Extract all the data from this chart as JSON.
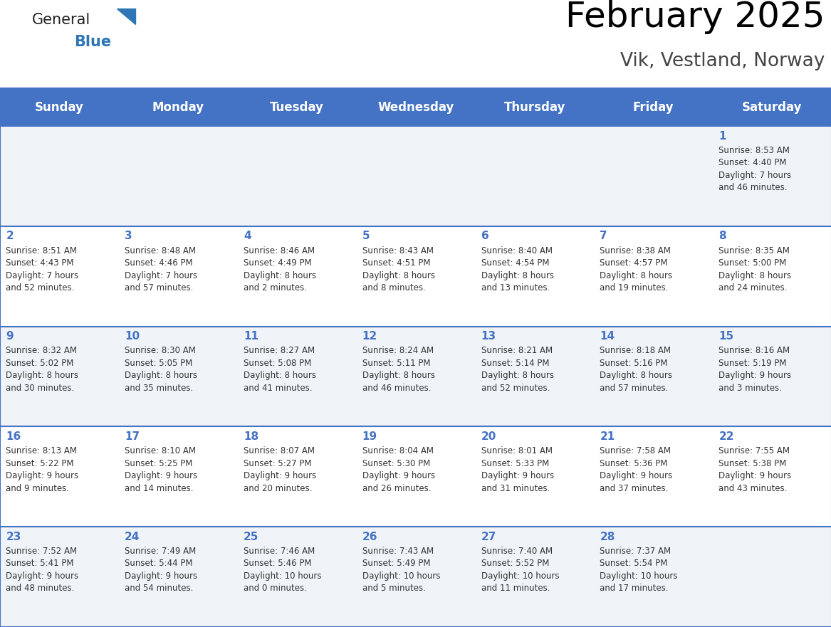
{
  "title": "February 2025",
  "subtitle": "Vik, Vestland, Norway",
  "header_bg": "#4472C4",
  "header_text_color": "#FFFFFF",
  "days_of_week": [
    "Sunday",
    "Monday",
    "Tuesday",
    "Wednesday",
    "Thursday",
    "Friday",
    "Saturday"
  ],
  "cell_bg_even": "#FFFFFF",
  "cell_bg_odd": "#F0F4F8",
  "border_color": "#4472C4",
  "text_color": "#333333",
  "logo_general_color": "#222222",
  "logo_blue_color": "#2E75B6",
  "logo_triangle_color": "#2E75B6",
  "calendar_data": [
    [
      {
        "day": null,
        "info": null
      },
      {
        "day": null,
        "info": null
      },
      {
        "day": null,
        "info": null
      },
      {
        "day": null,
        "info": null
      },
      {
        "day": null,
        "info": null
      },
      {
        "day": null,
        "info": null
      },
      {
        "day": 1,
        "info": "Sunrise: 8:53 AM\nSunset: 4:40 PM\nDaylight: 7 hours\nand 46 minutes."
      }
    ],
    [
      {
        "day": 2,
        "info": "Sunrise: 8:51 AM\nSunset: 4:43 PM\nDaylight: 7 hours\nand 52 minutes."
      },
      {
        "day": 3,
        "info": "Sunrise: 8:48 AM\nSunset: 4:46 PM\nDaylight: 7 hours\nand 57 minutes."
      },
      {
        "day": 4,
        "info": "Sunrise: 8:46 AM\nSunset: 4:49 PM\nDaylight: 8 hours\nand 2 minutes."
      },
      {
        "day": 5,
        "info": "Sunrise: 8:43 AM\nSunset: 4:51 PM\nDaylight: 8 hours\nand 8 minutes."
      },
      {
        "day": 6,
        "info": "Sunrise: 8:40 AM\nSunset: 4:54 PM\nDaylight: 8 hours\nand 13 minutes."
      },
      {
        "day": 7,
        "info": "Sunrise: 8:38 AM\nSunset: 4:57 PM\nDaylight: 8 hours\nand 19 minutes."
      },
      {
        "day": 8,
        "info": "Sunrise: 8:35 AM\nSunset: 5:00 PM\nDaylight: 8 hours\nand 24 minutes."
      }
    ],
    [
      {
        "day": 9,
        "info": "Sunrise: 8:32 AM\nSunset: 5:02 PM\nDaylight: 8 hours\nand 30 minutes."
      },
      {
        "day": 10,
        "info": "Sunrise: 8:30 AM\nSunset: 5:05 PM\nDaylight: 8 hours\nand 35 minutes."
      },
      {
        "day": 11,
        "info": "Sunrise: 8:27 AM\nSunset: 5:08 PM\nDaylight: 8 hours\nand 41 minutes."
      },
      {
        "day": 12,
        "info": "Sunrise: 8:24 AM\nSunset: 5:11 PM\nDaylight: 8 hours\nand 46 minutes."
      },
      {
        "day": 13,
        "info": "Sunrise: 8:21 AM\nSunset: 5:14 PM\nDaylight: 8 hours\nand 52 minutes."
      },
      {
        "day": 14,
        "info": "Sunrise: 8:18 AM\nSunset: 5:16 PM\nDaylight: 8 hours\nand 57 minutes."
      },
      {
        "day": 15,
        "info": "Sunrise: 8:16 AM\nSunset: 5:19 PM\nDaylight: 9 hours\nand 3 minutes."
      }
    ],
    [
      {
        "day": 16,
        "info": "Sunrise: 8:13 AM\nSunset: 5:22 PM\nDaylight: 9 hours\nand 9 minutes."
      },
      {
        "day": 17,
        "info": "Sunrise: 8:10 AM\nSunset: 5:25 PM\nDaylight: 9 hours\nand 14 minutes."
      },
      {
        "day": 18,
        "info": "Sunrise: 8:07 AM\nSunset: 5:27 PM\nDaylight: 9 hours\nand 20 minutes."
      },
      {
        "day": 19,
        "info": "Sunrise: 8:04 AM\nSunset: 5:30 PM\nDaylight: 9 hours\nand 26 minutes."
      },
      {
        "day": 20,
        "info": "Sunrise: 8:01 AM\nSunset: 5:33 PM\nDaylight: 9 hours\nand 31 minutes."
      },
      {
        "day": 21,
        "info": "Sunrise: 7:58 AM\nSunset: 5:36 PM\nDaylight: 9 hours\nand 37 minutes."
      },
      {
        "day": 22,
        "info": "Sunrise: 7:55 AM\nSunset: 5:38 PM\nDaylight: 9 hours\nand 43 minutes."
      }
    ],
    [
      {
        "day": 23,
        "info": "Sunrise: 7:52 AM\nSunset: 5:41 PM\nDaylight: 9 hours\nand 48 minutes."
      },
      {
        "day": 24,
        "info": "Sunrise: 7:49 AM\nSunset: 5:44 PM\nDaylight: 9 hours\nand 54 minutes."
      },
      {
        "day": 25,
        "info": "Sunrise: 7:46 AM\nSunset: 5:46 PM\nDaylight: 10 hours\nand 0 minutes."
      },
      {
        "day": 26,
        "info": "Sunrise: 7:43 AM\nSunset: 5:49 PM\nDaylight: 10 hours\nand 5 minutes."
      },
      {
        "day": 27,
        "info": "Sunrise: 7:40 AM\nSunset: 5:52 PM\nDaylight: 10 hours\nand 11 minutes."
      },
      {
        "day": 28,
        "info": "Sunrise: 7:37 AM\nSunset: 5:54 PM\nDaylight: 10 hours\nand 17 minutes."
      },
      {
        "day": null,
        "info": null
      }
    ]
  ]
}
